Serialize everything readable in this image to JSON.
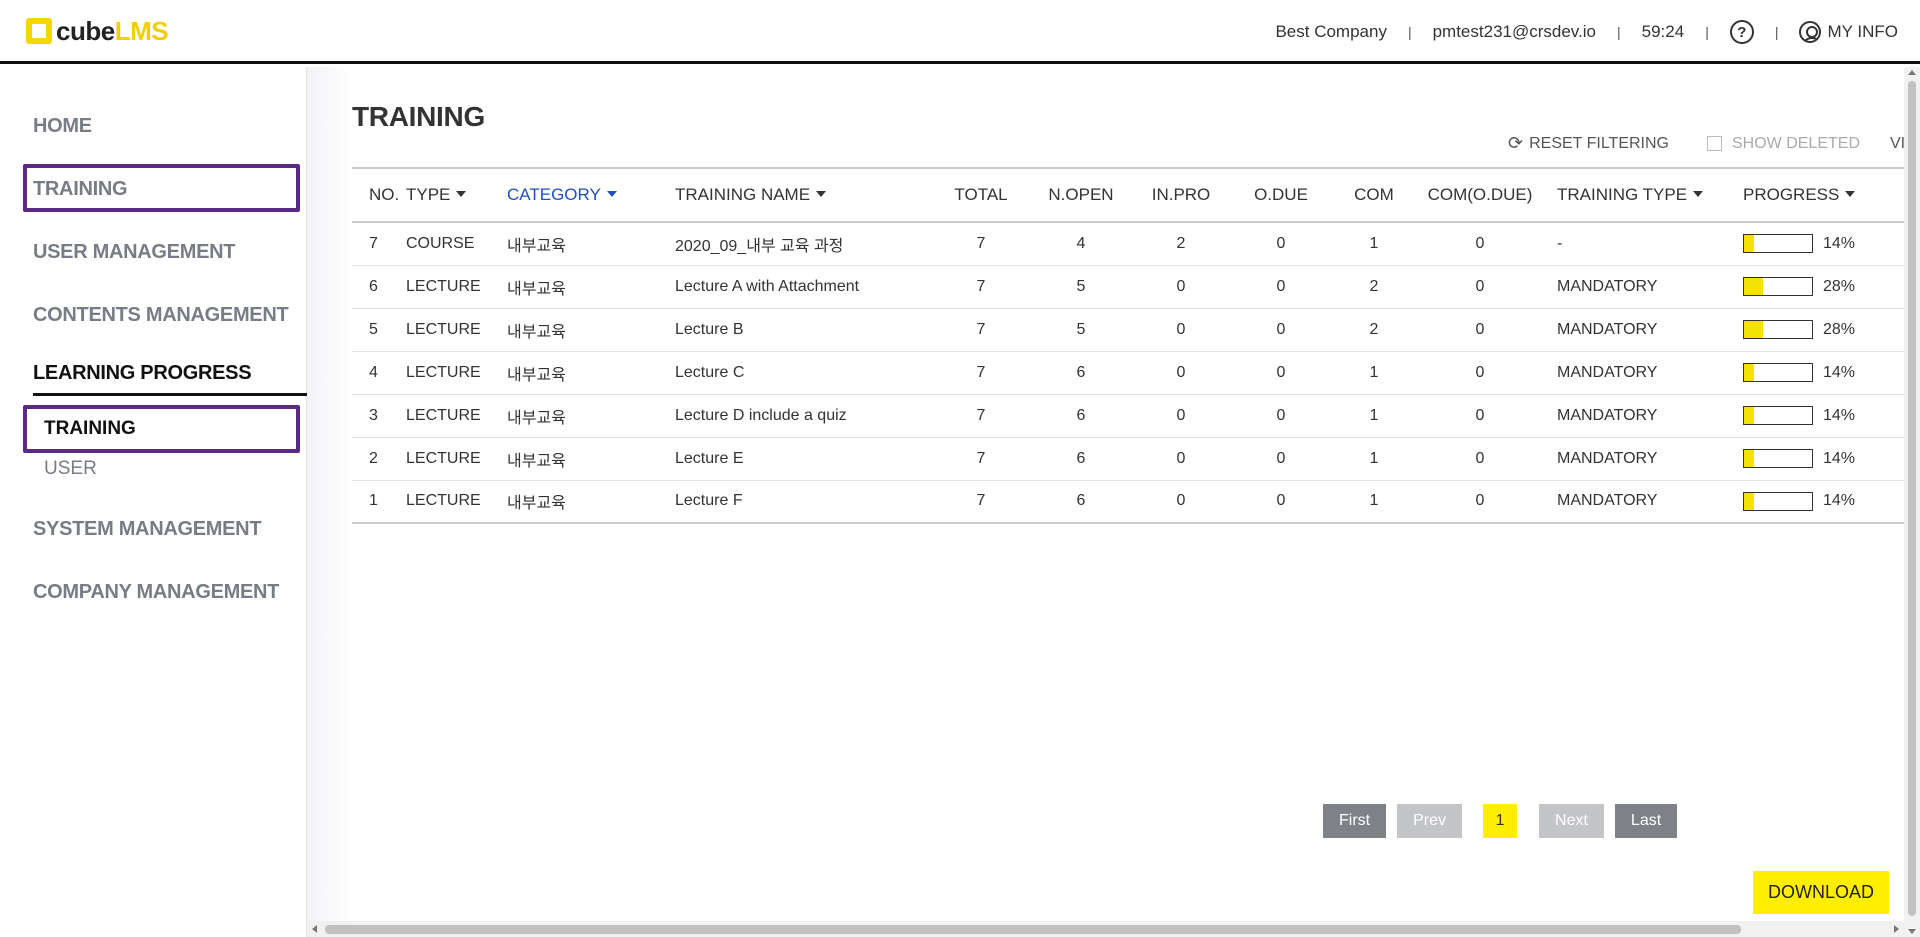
{
  "header": {
    "logo_cube": "cube",
    "logo_lms": "LMS",
    "company": "Best Company",
    "email": "pmtest231@crsdev.io",
    "timer": "59:24",
    "help_icon": "?",
    "my_info": "MY INFO"
  },
  "sidebar": {
    "items": [
      {
        "label": "HOME"
      },
      {
        "label": "TRAINING"
      },
      {
        "label": "USER MANAGEMENT"
      },
      {
        "label": "CONTENTS MANAGEMENT"
      },
      {
        "label": "LEARNING PROGRESS"
      },
      {
        "label": "SYSTEM MANAGEMENT"
      },
      {
        "label": "COMPANY MANAGEMENT"
      }
    ],
    "sub_items": [
      {
        "label": "TRAINING"
      },
      {
        "label": "USER"
      }
    ]
  },
  "main": {
    "title": "TRAINING",
    "reset_filtering": "RESET FILTERING",
    "show_deleted": "SHOW DELETED",
    "view_cut": "VI",
    "columns": [
      "NO.",
      "TYPE",
      "CATEGORY",
      "TRAINING NAME",
      "TOTAL",
      "N.OPEN",
      "IN.PRO",
      "O.DUE",
      "COM",
      "COM(O.DUE)",
      "TRAINING TYPE",
      "PROGRESS"
    ],
    "rows": [
      {
        "no": "7",
        "type": "COURSE",
        "category": "내부교육",
        "name": "2020_09_내부 교육 과정",
        "total": "7",
        "nopen": "4",
        "inpro": "2",
        "odue": "0",
        "com": "1",
        "comodue": "0",
        "training_type": "-",
        "progress": "14%",
        "progress_value": 0.14
      },
      {
        "no": "6",
        "type": "LECTURE",
        "category": "내부교육",
        "name": "Lecture A with Attachment",
        "total": "7",
        "nopen": "5",
        "inpro": "0",
        "odue": "0",
        "com": "2",
        "comodue": "0",
        "training_type": "MANDATORY",
        "progress": "28%",
        "progress_value": 0.28
      },
      {
        "no": "5",
        "type": "LECTURE",
        "category": "내부교육",
        "name": "Lecture B",
        "total": "7",
        "nopen": "5",
        "inpro": "0",
        "odue": "0",
        "com": "2",
        "comodue": "0",
        "training_type": "MANDATORY",
        "progress": "28%",
        "progress_value": 0.28
      },
      {
        "no": "4",
        "type": "LECTURE",
        "category": "내부교육",
        "name": "Lecture C",
        "total": "7",
        "nopen": "6",
        "inpro": "0",
        "odue": "0",
        "com": "1",
        "comodue": "0",
        "training_type": "MANDATORY",
        "progress": "14%",
        "progress_value": 0.14
      },
      {
        "no": "3",
        "type": "LECTURE",
        "category": "내부교육",
        "name": "Lecture D include a quiz",
        "total": "7",
        "nopen": "6",
        "inpro": "0",
        "odue": "0",
        "com": "1",
        "comodue": "0",
        "training_type": "MANDATORY",
        "progress": "14%",
        "progress_value": 0.14
      },
      {
        "no": "2",
        "type": "LECTURE",
        "category": "내부교육",
        "name": "Lecture E",
        "total": "7",
        "nopen": "6",
        "inpro": "0",
        "odue": "0",
        "com": "1",
        "comodue": "0",
        "training_type": "MANDATORY",
        "progress": "14%",
        "progress_value": 0.14
      },
      {
        "no": "1",
        "type": "LECTURE",
        "category": "내부교육",
        "name": "Lecture F",
        "total": "7",
        "nopen": "6",
        "inpro": "0",
        "odue": "0",
        "com": "1",
        "comodue": "0",
        "training_type": "MANDATORY",
        "progress": "14%",
        "progress_value": 0.14
      }
    ],
    "pager": {
      "first": "First",
      "prev": "Prev",
      "page": "1",
      "next": "Next",
      "last": "Last"
    },
    "download": "DOWNLOAD"
  },
  "colors": {
    "accent": "#ffee00",
    "highlight_box": "#5b2a86",
    "sort_blue": "#1f4fc4"
  }
}
